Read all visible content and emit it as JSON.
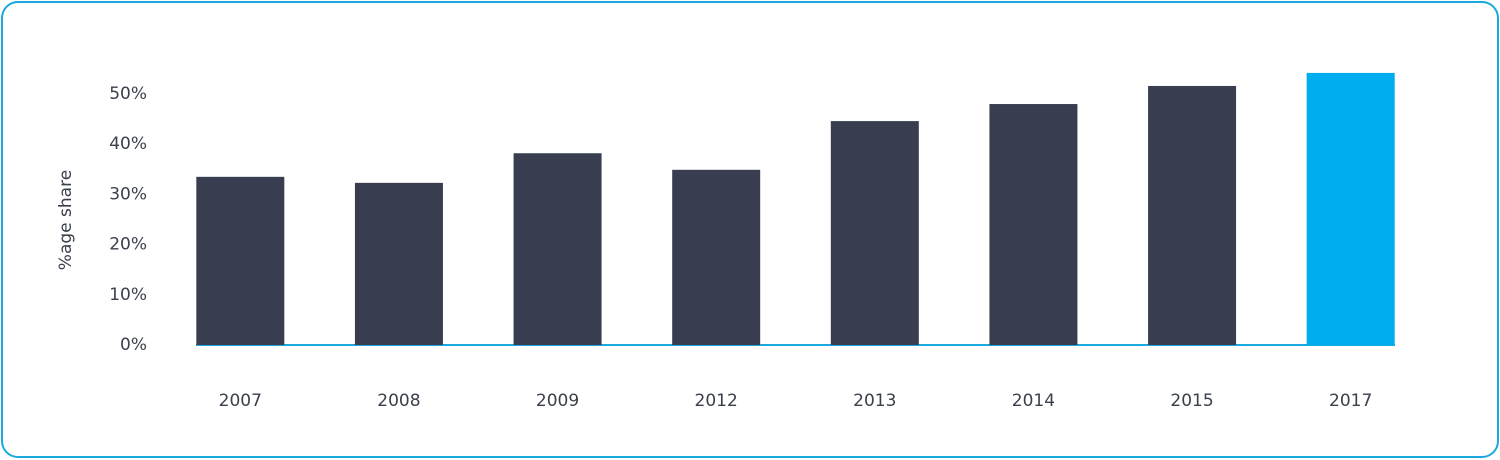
{
  "chart_data": {
    "type": "bar",
    "y_axis_label": "%age share",
    "categories": [
      "2007",
      "2008",
      "2009",
      "2012",
      "2013",
      "2014",
      "2015",
      "2017"
    ],
    "values": [
      33.5,
      32.3,
      38.2,
      34.9,
      44.6,
      48.0,
      51.6,
      54.2
    ],
    "colors": [
      "#383e4f",
      "#383e4f",
      "#383e4f",
      "#383e4f",
      "#383e4f",
      "#383e4f",
      "#383e4f",
      "#00adee"
    ],
    "ylim": [
      0,
      55
    ],
    "yticks": [
      {
        "value": 0,
        "label": "0%"
      },
      {
        "value": 10,
        "label": "10%"
      },
      {
        "value": 20,
        "label": "20%"
      },
      {
        "value": 30,
        "label": "30%"
      },
      {
        "value": 40,
        "label": "40%"
      },
      {
        "value": 50,
        "label": "50%"
      }
    ],
    "grid": false
  }
}
